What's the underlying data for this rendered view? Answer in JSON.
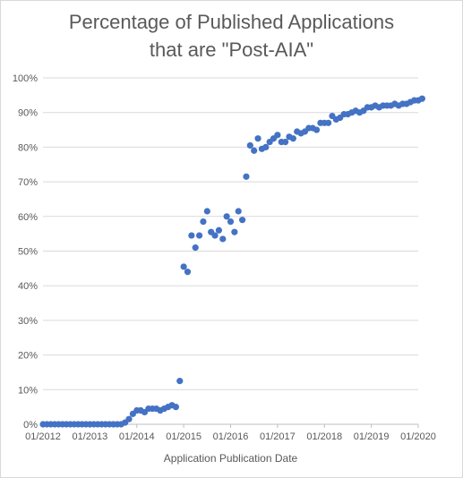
{
  "chart_data": {
    "type": "scatter",
    "title_lines": [
      "Percentage of Published Applications",
      "that are \"Post-AIA\""
    ],
    "xlabel": "Application Publication Date",
    "ylabel": "",
    "x_ticks": [
      "01/2012",
      "01/2013",
      "01/2014",
      "01/2015",
      "01/2016",
      "01/2017",
      "01/2018",
      "01/2019",
      "01/2020"
    ],
    "y_ticks": [
      "0%",
      "10%",
      "20%",
      "30%",
      "40%",
      "50%",
      "60%",
      "70%",
      "80%",
      "90%",
      "100%"
    ],
    "ylim": [
      0,
      100
    ],
    "xlim": [
      "01/2012",
      "01/2020"
    ],
    "grid": "horizontal",
    "legend": "none",
    "marker_color": "#4472c4",
    "series": [
      {
        "x": [
          "01/2012",
          "02/2012",
          "03/2012",
          "04/2012",
          "05/2012",
          "06/2012",
          "07/2012",
          "08/2012",
          "09/2012",
          "10/2012",
          "11/2012",
          "12/2012",
          "01/2013",
          "02/2013",
          "03/2013",
          "04/2013",
          "05/2013",
          "06/2013",
          "07/2013",
          "08/2013",
          "09/2013",
          "10/2013",
          "11/2013",
          "12/2013",
          "01/2014",
          "02/2014",
          "03/2014",
          "04/2014",
          "05/2014",
          "06/2014",
          "07/2014",
          "08/2014",
          "09/2014",
          "10/2014",
          "11/2014",
          "12/2014",
          "01/2015",
          "02/2015",
          "03/2015",
          "04/2015",
          "05/2015",
          "06/2015",
          "07/2015",
          "08/2015",
          "09/2015",
          "10/2015",
          "11/2015",
          "12/2015",
          "01/2016",
          "02/2016",
          "03/2016",
          "04/2016",
          "05/2016",
          "06/2016",
          "07/2016",
          "08/2016",
          "09/2016",
          "10/2016",
          "11/2016",
          "12/2016",
          "01/2017",
          "02/2017",
          "03/2017",
          "04/2017",
          "05/2017",
          "06/2017",
          "07/2017",
          "08/2017",
          "09/2017",
          "10/2017",
          "11/2017",
          "12/2017",
          "01/2018",
          "02/2018",
          "03/2018",
          "04/2018",
          "05/2018",
          "06/2018",
          "07/2018",
          "08/2018",
          "09/2018",
          "10/2018",
          "11/2018",
          "12/2018",
          "01/2019",
          "02/2019",
          "03/2019",
          "04/2019",
          "05/2019",
          "06/2019",
          "07/2019",
          "08/2019",
          "09/2019",
          "10/2019",
          "11/2019",
          "12/2019",
          "01/2020",
          "02/2020"
        ],
        "y": [
          0,
          0,
          0,
          0,
          0,
          0,
          0,
          0,
          0,
          0,
          0,
          0,
          0,
          0,
          0,
          0,
          0,
          0,
          0,
          0,
          0,
          0.5,
          1.5,
          3,
          4,
          4,
          3.5,
          4.5,
          4.5,
          4.5,
          4,
          4.5,
          5,
          5.5,
          5,
          12.5,
          45.5,
          44,
          54.5,
          51,
          54.5,
          58.5,
          61.5,
          55.5,
          54.5,
          56,
          53.5,
          60,
          58.5,
          55.5,
          61.5,
          59,
          71.5,
          80.5,
          79,
          82.5,
          79.5,
          80,
          81.5,
          82.5,
          83.5,
          81.5,
          81.5,
          83,
          82.5,
          84.5,
          84,
          84.5,
          85.5,
          85.5,
          85,
          87,
          87,
          87,
          89,
          88,
          88.5,
          89.5,
          89.5,
          90,
          90.5,
          90,
          90.5,
          91.5,
          91.5,
          92,
          91.5,
          92,
          92,
          92,
          92.5,
          92,
          92.5,
          92.5,
          93,
          93.5,
          93.5,
          94
        ]
      }
    ]
  }
}
